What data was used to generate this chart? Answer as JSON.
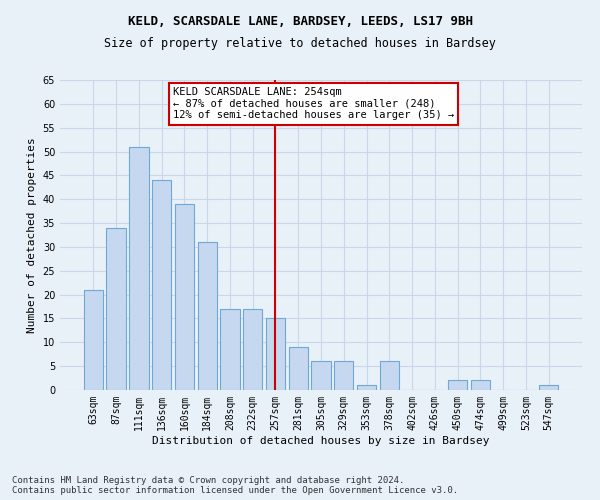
{
  "title": "KELD, SCARSDALE LANE, BARDSEY, LEEDS, LS17 9BH",
  "subtitle": "Size of property relative to detached houses in Bardsey",
  "xlabel": "Distribution of detached houses by size in Bardsey",
  "ylabel": "Number of detached properties",
  "categories": [
    "63sqm",
    "87sqm",
    "111sqm",
    "136sqm",
    "160sqm",
    "184sqm",
    "208sqm",
    "232sqm",
    "257sqm",
    "281sqm",
    "305sqm",
    "329sqm",
    "353sqm",
    "378sqm",
    "402sqm",
    "426sqm",
    "450sqm",
    "474sqm",
    "499sqm",
    "523sqm",
    "547sqm"
  ],
  "values": [
    21,
    34,
    51,
    44,
    39,
    31,
    17,
    17,
    15,
    9,
    6,
    6,
    1,
    6,
    0,
    0,
    2,
    2,
    0,
    0,
    1
  ],
  "bar_color": "#c5d8f0",
  "bar_edgecolor": "#6fa8d5",
  "grid_color": "#c8d8e8",
  "background_color": "#e8f0f8",
  "vline_x_index": 8,
  "vline_color": "#cc0000",
  "annotation_text": "KELD SCARSDALE LANE: 254sqm\n← 87% of detached houses are smaller (248)\n12% of semi-detached houses are larger (35) →",
  "annotation_box_color": "#ffffff",
  "annotation_box_edge": "#cc0000",
  "ylim": [
    0,
    65
  ],
  "yticks": [
    0,
    5,
    10,
    15,
    20,
    25,
    30,
    35,
    40,
    45,
    50,
    55,
    60,
    65
  ],
  "footer_line1": "Contains HM Land Registry data © Crown copyright and database right 2024.",
  "footer_line2": "Contains public sector information licensed under the Open Government Licence v3.0.",
  "title_fontsize": 9,
  "subtitle_fontsize": 8.5,
  "xlabel_fontsize": 8,
  "ylabel_fontsize": 8,
  "tick_fontsize": 7,
  "annotation_fontsize": 7.5,
  "footer_fontsize": 6.5
}
